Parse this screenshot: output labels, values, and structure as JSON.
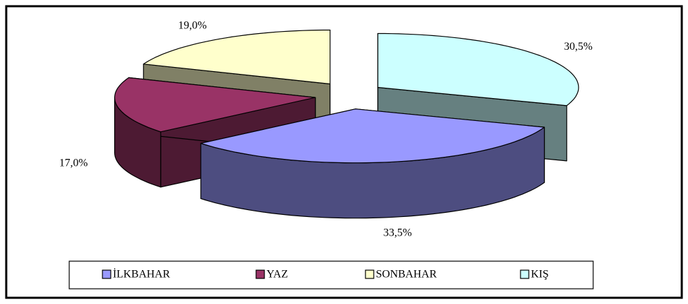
{
  "chart_data": {
    "type": "pie",
    "categories": [
      "İLKBAHAR",
      "YAZ",
      "SONBAHAR",
      "KIŞ"
    ],
    "values": [
      33.5,
      17.0,
      19.0,
      30.5
    ],
    "value_labels": [
      "33,5%",
      "17,0%",
      "19,0%",
      "30,5%"
    ],
    "colors": [
      "#9999ff",
      "#993366",
      "#ffffcc",
      "#ccffff"
    ],
    "legend": "bottom"
  }
}
